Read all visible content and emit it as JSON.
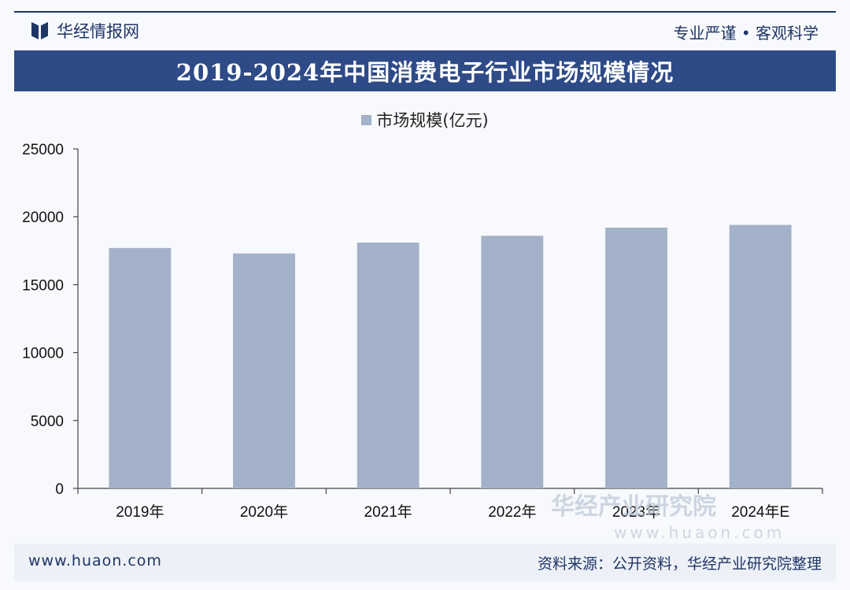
{
  "header": {
    "brand": "华经情报网",
    "slogan": "专业严谨 • 客观科学"
  },
  "chart_data": {
    "type": "bar",
    "title": "2019-2024年中国消费电子行业市场规模情况",
    "categories": [
      "2019年",
      "2020年",
      "2021年",
      "2022年",
      "2023年",
      "2024年E"
    ],
    "series": [
      {
        "name": "市场规模(亿元)",
        "values": [
          17700,
          17300,
          18100,
          18600,
          19200,
          19400
        ]
      }
    ],
    "ylim": [
      0,
      25000
    ],
    "yticks": [
      0,
      5000,
      10000,
      15000,
      20000,
      25000
    ],
    "bar_color": "#a3b1c9",
    "legend_position": "top-center",
    "grid": false
  },
  "footer": {
    "url": "www.huaon.com",
    "source": "资料来源：公开资料，华经产业研究院整理"
  },
  "watermark": {
    "text": "华经产业研究院",
    "url": "www.huaon.com"
  },
  "colors": {
    "primary": "#2e4a87",
    "bar": "#a3b1c9"
  }
}
